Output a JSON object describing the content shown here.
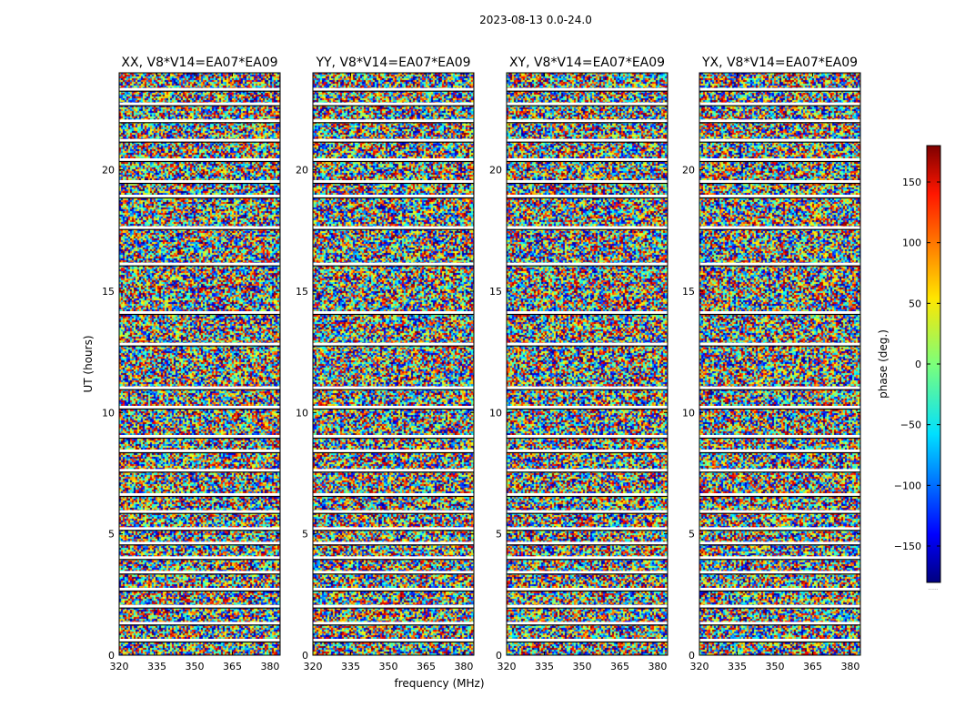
{
  "suptitle": "2023-08-13 0.0-24.0",
  "xlabel": "frequency (MHz)",
  "ylabel": "UT (hours)",
  "colorbar": {
    "label": "phase (deg.)",
    "range": [
      -180,
      180
    ],
    "ticks": [
      150,
      100,
      50,
      0,
      -50,
      -100,
      -150
    ],
    "tick_labels": [
      "150",
      "100",
      "50",
      "0",
      "−50",
      "−100",
      "−150"
    ],
    "footnote": "......"
  },
  "panels": [
    {
      "title": "XX, V8*V14=EA07*EA09"
    },
    {
      "title": "YY, V8*V14=EA07*EA09"
    },
    {
      "title": "XY, V8*V14=EA07*EA09"
    },
    {
      "title": "YX, V8*V14=EA07*EA09"
    }
  ],
  "chart_data": {
    "type": "heatmap",
    "title": "2023-08-13 0.0-24.0",
    "xlabel": "frequency (MHz)",
    "ylabel": "UT (hours)",
    "xlim": [
      320,
      384
    ],
    "ylim": [
      0,
      24
    ],
    "x_ticks": [
      320,
      335,
      350,
      365,
      380
    ],
    "x_tick_labels": [
      "320",
      "335",
      "350",
      "365",
      "380"
    ],
    "y_ticks": [
      0,
      5,
      10,
      15,
      20
    ],
    "y_tick_labels": [
      "0",
      "5",
      "10",
      "15",
      "20"
    ],
    "color_range": [
      -180,
      180
    ],
    "colormap": "jet",
    "panels": [
      "XX, V8*V14=EA07*EA09",
      "YY, V8*V14=EA07*EA09",
      "XY, V8*V14=EA07*EA09",
      "YX, V8*V14=EA07*EA09"
    ],
    "gaps_ut": [
      23.3,
      22.7,
      22.0,
      21.2,
      20.4,
      19.5,
      18.9,
      17.6,
      16.1,
      14.1,
      12.8,
      11.0,
      10.2,
      9.0,
      8.4,
      7.6,
      6.6,
      5.9,
      5.2,
      4.6,
      4.0,
      3.4,
      2.7,
      2.0,
      1.3,
      0.6
    ]
  }
}
